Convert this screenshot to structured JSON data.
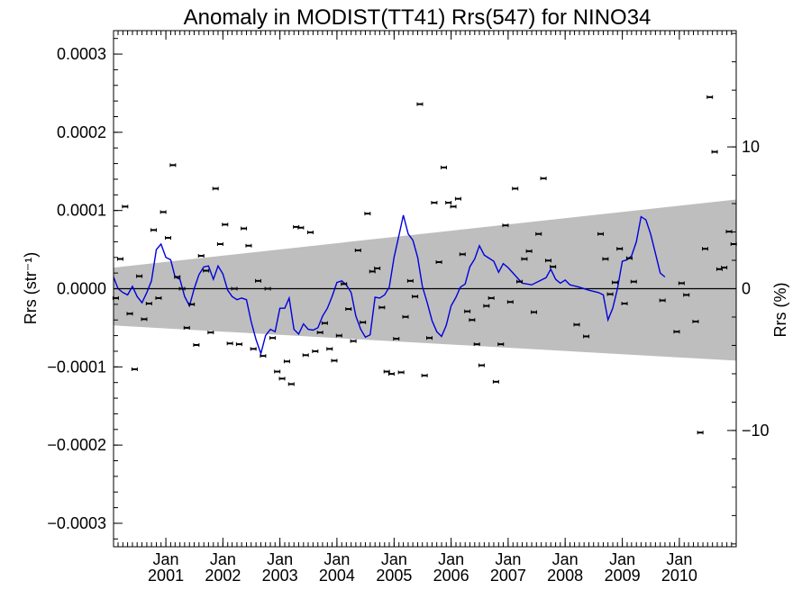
{
  "chart_data": {
    "type": "scatter",
    "title": "Anomaly in MODIST(TT41) Rrs(547) for NINO34",
    "ylabel": "Rrs (str⁻¹)",
    "y2label": "Rrs (%)",
    "xlim": [
      "2000-02-01",
      "2010-12-31"
    ],
    "ylim": [
      -0.00033,
      0.00033
    ],
    "y2lim": [
      -18.2,
      18.2
    ],
    "y_ticks": [
      -0.0003,
      -0.0002,
      -0.0001,
      0.0,
      0.0001,
      0.0002,
      0.0003
    ],
    "y_tick_labels": [
      "−0.0003",
      "−0.0002",
      "−0.0001",
      "0.0000",
      "0.0001",
      "0.0002",
      "0.0003"
    ],
    "y2_ticks": [
      -10,
      0,
      10
    ],
    "y2_tick_labels": [
      "−10",
      "0",
      "10"
    ],
    "x_ticks": [
      {
        "date": "2001-01-01",
        "month": "Jan",
        "year": "2001"
      },
      {
        "date": "2002-01-01",
        "month": "Jan",
        "year": "2002"
      },
      {
        "date": "2003-01-01",
        "month": "Jan",
        "year": "2003"
      },
      {
        "date": "2004-01-01",
        "month": "Jan",
        "year": "2004"
      },
      {
        "date": "2005-01-01",
        "month": "Jan",
        "year": "2005"
      },
      {
        "date": "2006-01-01",
        "month": "Jan",
        "year": "2006"
      },
      {
        "date": "2007-01-01",
        "month": "Jan",
        "year": "2007"
      },
      {
        "date": "2008-01-01",
        "month": "Jan",
        "year": "2008"
      },
      {
        "date": "2009-01-01",
        "month": "Jan",
        "year": "2009"
      },
      {
        "date": "2010-01-01",
        "month": "Jan",
        "year": "2010"
      }
    ],
    "band": {
      "color": "#bebebe",
      "upper": [
        [
          "2000-02-01",
          2.7e-05
        ],
        [
          "2010-12-31",
          0.000114
        ]
      ],
      "lower": [
        [
          "2000-02-01",
          -4.7e-05
        ],
        [
          "2010-12-31",
          -9.2e-05
        ]
      ]
    },
    "zero_line": 0,
    "series": [
      {
        "kind": "points",
        "color": "#000000",
        "points": [
          [
            "2000-02-15",
            -1.2e-05
          ],
          [
            "2000-03-15",
            3.8e-05
          ],
          [
            "2000-04-15",
            0.000105
          ],
          [
            "2000-05-15",
            -3.2e-05
          ],
          [
            "2000-06-15",
            -0.000103
          ],
          [
            "2000-07-15",
            1.6e-05
          ],
          [
            "2000-08-15",
            -3.9e-05
          ],
          [
            "2000-09-15",
            -1.9e-05
          ],
          [
            "2000-10-15",
            7.5e-05
          ],
          [
            "2000-11-15",
            -1.2e-05
          ],
          [
            "2000-12-15",
            9.8e-05
          ],
          [
            "2001-01-15",
            6.5e-05
          ],
          [
            "2001-02-15",
            0.000158
          ],
          [
            "2001-03-15",
            1.5e-05
          ],
          [
            "2001-04-15",
            0.0
          ],
          [
            "2001-05-15",
            -5e-05
          ],
          [
            "2001-06-15",
            -2e-05
          ],
          [
            "2001-07-15",
            -7.2e-05
          ],
          [
            "2001-08-15",
            4.2e-05
          ],
          [
            "2001-09-15",
            2.3e-05
          ],
          [
            "2001-10-15",
            -5.6e-05
          ],
          [
            "2001-11-15",
            0.000128
          ],
          [
            "2001-12-15",
            5.7e-05
          ],
          [
            "2002-01-15",
            8.2e-05
          ],
          [
            "2002-02-15",
            -7e-05
          ],
          [
            "2002-03-15",
            0.0
          ],
          [
            "2002-04-15",
            -7.1e-05
          ],
          [
            "2002-05-15",
            7.7e-05
          ],
          [
            "2002-06-15",
            5.5e-05
          ],
          [
            "2002-07-15",
            -7.7e-05
          ],
          [
            "2002-08-15",
            1e-05
          ],
          [
            "2002-09-15",
            -8.6e-05
          ],
          [
            "2002-10-15",
            0.0
          ],
          [
            "2002-11-15",
            -6.3e-05
          ],
          [
            "2002-12-15",
            -0.000106
          ],
          [
            "2003-01-15",
            -0.000115
          ],
          [
            "2003-02-15",
            -9.3e-05
          ],
          [
            "2003-03-15",
            -0.000122
          ],
          [
            "2003-04-15",
            7.9e-05
          ],
          [
            "2003-05-15",
            7.8e-05
          ],
          [
            "2003-06-15",
            -8.5e-05
          ],
          [
            "2003-07-15",
            7.2e-05
          ],
          [
            "2003-08-15",
            -8e-05
          ],
          [
            "2003-09-15",
            -5.6e-05
          ],
          [
            "2003-10-15",
            -4.4e-05
          ],
          [
            "2003-11-15",
            -7.7e-05
          ],
          [
            "2003-12-15",
            -9.2e-05
          ],
          [
            "2004-01-15",
            -6e-05
          ],
          [
            "2004-02-15",
            6e-06
          ],
          [
            "2004-03-15",
            -2.6e-05
          ],
          [
            "2004-04-15",
            -6.7e-05
          ],
          [
            "2004-05-15",
            4.9e-05
          ],
          [
            "2004-06-15",
            -4.3e-05
          ],
          [
            "2004-07-15",
            9.6e-05
          ],
          [
            "2004-08-15",
            2.2e-05
          ],
          [
            "2004-09-15",
            2.6e-05
          ],
          [
            "2004-10-15",
            -2.4e-05
          ],
          [
            "2004-11-15",
            -0.000106
          ],
          [
            "2004-12-15",
            -0.000109
          ],
          [
            "2005-01-15",
            -6.4e-05
          ],
          [
            "2005-02-15",
            -0.000107
          ],
          [
            "2005-03-15",
            -3.6e-05
          ],
          [
            "2005-04-15",
            1e-05
          ],
          [
            "2005-05-15",
            -1e-05
          ],
          [
            "2005-06-15",
            0.000236
          ],
          [
            "2005-07-15",
            -0.000111
          ],
          [
            "2005-08-15",
            -6.3e-05
          ],
          [
            "2005-09-15",
            0.00011
          ],
          [
            "2005-10-15",
            3.4e-05
          ],
          [
            "2005-11-15",
            0.000155
          ],
          [
            "2005-12-15",
            0.00011
          ],
          [
            "2006-01-15",
            0.000105
          ],
          [
            "2006-02-15",
            0.000115
          ],
          [
            "2006-03-15",
            4.4e-05
          ],
          [
            "2006-04-15",
            -2.9e-05
          ],
          [
            "2006-05-15",
            -4e-05
          ],
          [
            "2006-06-15",
            -7.1e-05
          ],
          [
            "2006-07-15",
            -9.8e-05
          ],
          [
            "2006-08-15",
            -2.2e-05
          ],
          [
            "2006-09-15",
            -1.2e-05
          ],
          [
            "2006-10-15",
            -0.000119
          ],
          [
            "2006-11-15",
            -7.1e-05
          ],
          [
            "2006-12-15",
            8.1e-05
          ],
          [
            "2007-01-15",
            -1.7e-05
          ],
          [
            "2007-02-15",
            0.000128
          ],
          [
            "2007-03-15",
            9e-06
          ],
          [
            "2007-04-15",
            3.8e-05
          ],
          [
            "2007-05-15",
            4.8e-05
          ],
          [
            "2007-06-15",
            -3e-05
          ],
          [
            "2007-07-15",
            7e-05
          ],
          [
            "2007-08-15",
            0.000141
          ],
          [
            "2007-09-15",
            3.6e-05
          ],
          [
            "2007-10-15",
            2.8e-05
          ],
          [
            "2008-03-15",
            -4.6e-05
          ],
          [
            "2008-05-15",
            -6.1e-05
          ],
          [
            "2008-08-15",
            7e-05
          ],
          [
            "2008-09-15",
            3.8e-05
          ],
          [
            "2008-10-15",
            -7e-06
          ],
          [
            "2008-11-15",
            8e-06
          ],
          [
            "2008-12-15",
            5.1e-05
          ],
          [
            "2009-01-15",
            -1.9e-05
          ],
          [
            "2009-02-15",
            3.9e-05
          ],
          [
            "2009-03-15",
            9e-06
          ],
          [
            "2009-09-15",
            -1.5e-05
          ],
          [
            "2009-12-15",
            -5.5e-05
          ],
          [
            "2010-01-15",
            7e-06
          ],
          [
            "2010-02-15",
            -8e-06
          ],
          [
            "2010-04-15",
            -4.2e-05
          ],
          [
            "2010-05-15",
            -0.000184
          ],
          [
            "2010-06-15",
            5.1e-05
          ],
          [
            "2010-07-15",
            0.000245
          ],
          [
            "2010-08-15",
            0.000175
          ],
          [
            "2010-09-15",
            2.5e-05
          ],
          [
            "2010-10-15",
            2.7e-05
          ],
          [
            "2010-11-15",
            7.3e-05
          ],
          [
            "2010-12-15",
            5.7e-05
          ]
        ]
      },
      {
        "kind": "line",
        "color": "#0000dd",
        "points": [
          [
            "2000-02-01",
            1.5e-05
          ],
          [
            "2000-03-01",
            0.0
          ],
          [
            "2000-04-01",
            -5e-06
          ],
          [
            "2000-05-01",
            -8e-06
          ],
          [
            "2000-06-01",
            3e-06
          ],
          [
            "2000-07-01",
            -1e-05
          ],
          [
            "2000-08-01",
            -1.8e-05
          ],
          [
            "2000-09-01",
            -5e-06
          ],
          [
            "2000-10-01",
            1e-05
          ],
          [
            "2000-11-01",
            5e-05
          ],
          [
            "2000-12-01",
            5.7e-05
          ],
          [
            "2001-01-01",
            4e-05
          ],
          [
            "2001-02-01",
            3.7e-05
          ],
          [
            "2001-03-01",
            1.5e-05
          ],
          [
            "2001-04-01",
            1.2e-05
          ],
          [
            "2001-05-01",
            -1e-05
          ],
          [
            "2001-06-01",
            -2.2e-05
          ],
          [
            "2001-07-01",
            0.0
          ],
          [
            "2001-08-01",
            1.8e-05
          ],
          [
            "2001-09-01",
            2.8e-05
          ],
          [
            "2001-10-01",
            2.9e-05
          ],
          [
            "2001-11-01",
            1.2e-05
          ],
          [
            "2001-12-01",
            2.9e-05
          ],
          [
            "2002-01-01",
            1.9e-05
          ],
          [
            "2002-02-01",
            -2e-06
          ],
          [
            "2002-03-01",
            -1e-05
          ],
          [
            "2002-04-01",
            -1.4e-05
          ],
          [
            "2002-05-01",
            -1.2e-05
          ],
          [
            "2002-06-01",
            -1.4e-05
          ],
          [
            "2002-07-01",
            -4.2e-05
          ],
          [
            "2002-08-01",
            -6.5e-05
          ],
          [
            "2002-09-01",
            -8.3e-05
          ],
          [
            "2002-10-01",
            -6e-05
          ],
          [
            "2002-11-01",
            -5.2e-05
          ],
          [
            "2002-12-01",
            -5.5e-05
          ],
          [
            "2003-01-01",
            -2.5e-05
          ],
          [
            "2003-02-01",
            -2.5e-05
          ],
          [
            "2003-03-01",
            -1.2e-05
          ],
          [
            "2003-04-01",
            -5.2e-05
          ],
          [
            "2003-05-01",
            -5.8e-05
          ],
          [
            "2003-06-01",
            -4.5e-05
          ],
          [
            "2003-07-01",
            -5.2e-05
          ],
          [
            "2003-08-01",
            -5.3e-05
          ],
          [
            "2003-09-01",
            -5e-05
          ],
          [
            "2003-10-01",
            -3.5e-05
          ],
          [
            "2003-11-01",
            -2.5e-05
          ],
          [
            "2003-12-01",
            -1e-05
          ],
          [
            "2004-01-01",
            8e-06
          ],
          [
            "2004-02-01",
            1e-05
          ],
          [
            "2004-03-01",
            5e-06
          ],
          [
            "2004-04-01",
            -5e-06
          ],
          [
            "2004-05-01",
            -3.5e-05
          ],
          [
            "2004-06-01",
            -5.2e-05
          ],
          [
            "2004-07-01",
            -6.2e-05
          ],
          [
            "2004-08-01",
            -5.9e-05
          ],
          [
            "2004-09-01",
            -1.1e-05
          ],
          [
            "2004-10-01",
            -1.2e-05
          ],
          [
            "2004-11-01",
            -8e-06
          ],
          [
            "2004-12-01",
            2e-06
          ],
          [
            "2005-01-01",
            4e-05
          ],
          [
            "2005-02-01",
            6.8e-05
          ],
          [
            "2005-03-01",
            9.4e-05
          ],
          [
            "2005-04-01",
            7e-05
          ],
          [
            "2005-05-01",
            6.2e-05
          ],
          [
            "2005-06-01",
            4e-05
          ],
          [
            "2005-07-01",
            3e-06
          ],
          [
            "2005-08-01",
            -1.8e-05
          ],
          [
            "2005-09-01",
            -4.1e-05
          ],
          [
            "2005-10-01",
            -5.5e-05
          ],
          [
            "2005-11-01",
            -6.1e-05
          ],
          [
            "2005-12-01",
            -4.7e-05
          ],
          [
            "2006-01-01",
            -2.2e-05
          ],
          [
            "2006-02-01",
            -1.1e-05
          ],
          [
            "2006-03-01",
            2e-06
          ],
          [
            "2006-04-01",
            6e-06
          ],
          [
            "2006-05-01",
            2.8e-05
          ],
          [
            "2006-06-01",
            3.8e-05
          ],
          [
            "2006-07-01",
            5.5e-05
          ],
          [
            "2006-08-01",
            4.3e-05
          ],
          [
            "2006-09-01",
            3.9e-05
          ],
          [
            "2006-10-01",
            3.5e-05
          ],
          [
            "2006-11-01",
            2.1e-05
          ],
          [
            "2006-12-01",
            3.2e-05
          ],
          [
            "2007-01-01",
            2.7e-05
          ],
          [
            "2007-02-01",
            2e-05
          ],
          [
            "2007-04-01",
            7e-06
          ],
          [
            "2007-06-01",
            5e-06
          ],
          [
            "2007-08-01",
            1.1e-05
          ],
          [
            "2007-09-01",
            1.4e-05
          ],
          [
            "2007-10-01",
            2.5e-05
          ],
          [
            "2007-11-01",
            1.2e-05
          ],
          [
            "2007-12-01",
            7e-06
          ],
          [
            "2008-01-01",
            1.1e-05
          ],
          [
            "2008-02-01",
            5e-06
          ],
          [
            "2008-04-01",
            2e-06
          ],
          [
            "2008-06-01",
            -2e-06
          ],
          [
            "2008-08-01",
            -5e-06
          ],
          [
            "2008-09-01",
            -8e-06
          ],
          [
            "2008-10-01",
            -4e-05
          ],
          [
            "2008-11-01",
            -2.5e-05
          ],
          [
            "2008-12-01",
            0.0
          ],
          [
            "2009-01-01",
            3.5e-05
          ],
          [
            "2009-02-01",
            3.7e-05
          ],
          [
            "2009-03-01",
            4.2e-05
          ],
          [
            "2009-04-01",
            6e-05
          ],
          [
            "2009-05-01",
            9.2e-05
          ],
          [
            "2009-06-01",
            8.8e-05
          ],
          [
            "2009-07-01",
            7e-05
          ],
          [
            "2009-08-01",
            4.5e-05
          ],
          [
            "2009-09-01",
            2e-05
          ],
          [
            "2009-10-01",
            1.5e-05
          ]
        ]
      }
    ]
  }
}
